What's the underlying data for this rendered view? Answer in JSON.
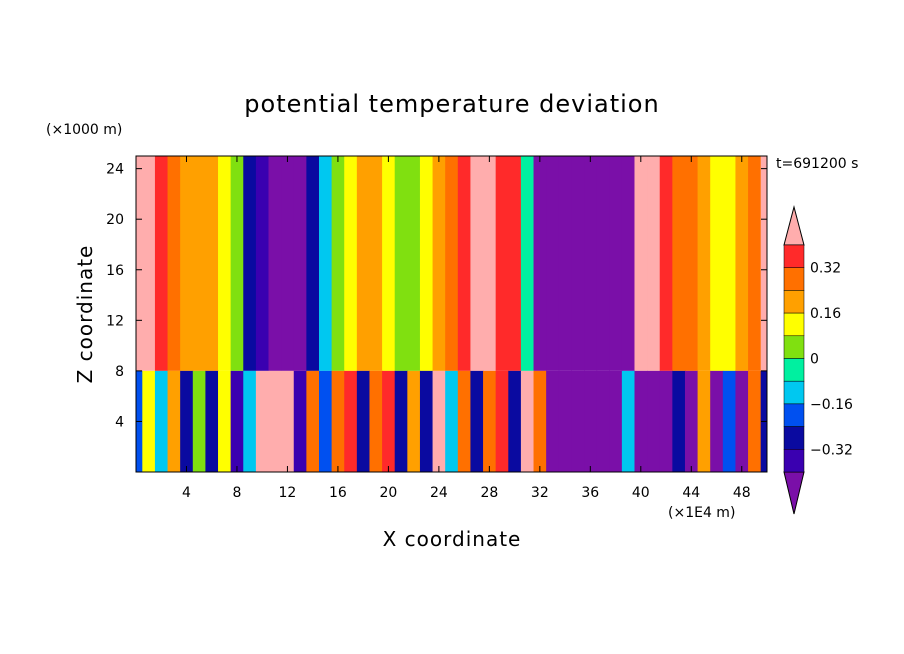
{
  "chart_data": {
    "type": "heatmap",
    "title": "potential temperature deviation",
    "xlabel": "X coordinate",
    "ylabel": "Z coordinate",
    "x_unit": "(×1E4 m)",
    "y_unit": "(×1000 m)",
    "time_label": "t=691200 s",
    "xlim": [
      0,
      50
    ],
    "ylim": [
      0,
      25
    ],
    "x_ticks": [
      4,
      8,
      12,
      16,
      20,
      24,
      28,
      32,
      36,
      40,
      44,
      48
    ],
    "y_ticks": [
      4,
      8,
      12,
      16,
      20,
      24
    ],
    "colorbar": {
      "levels": [
        -0.4,
        -0.32,
        -0.24,
        -0.16,
        -0.08,
        0,
        0.08,
        0.16,
        0.24,
        0.32,
        0.4
      ],
      "tick_labels": [
        "0.32",
        "0.16",
        "0",
        "−0.16",
        "−0.32"
      ],
      "tick_values": [
        0.32,
        0.16,
        0,
        -0.16,
        -0.32
      ],
      "colors": [
        "#7a0fa8",
        "#3a00b0",
        "#0a0aa0",
        "#0050f0",
        "#00c8f0",
        "#00f0a0",
        "#80e010",
        "#ffff00",
        "#ffa000",
        "#ff7000",
        "#ff2a2a",
        "#ffadad"
      ],
      "extend": "both"
    },
    "upper_layer_profile": {
      "z_range": [
        8,
        25
      ],
      "x": [
        0,
        1,
        2,
        3,
        4,
        5,
        6,
        7,
        8,
        9,
        10,
        11,
        12,
        13,
        14,
        15,
        16,
        17,
        18,
        19,
        20,
        21,
        22,
        23,
        24,
        25,
        26,
        27,
        28,
        29,
        30,
        31,
        32,
        33,
        34,
        35,
        36,
        37,
        38,
        39,
        40,
        41,
        42,
        43,
        44,
        45,
        46,
        47,
        48,
        49,
        50
      ],
      "values": [
        0.45,
        0.42,
        0.36,
        0.3,
        0.22,
        0.22,
        0.18,
        0.12,
        0.02,
        -0.3,
        -0.4,
        -0.42,
        -0.42,
        -0.42,
        -0.25,
        -0.1,
        0.02,
        0.12,
        0.18,
        0.16,
        0.1,
        0.06,
        0.04,
        0.1,
        0.2,
        0.28,
        0.34,
        0.4,
        0.42,
        0.36,
        0.32,
        -0.05,
        -0.42,
        -0.42,
        -0.42,
        -0.42,
        -0.42,
        -0.42,
        -0.42,
        -0.42,
        0.45,
        0.42,
        0.36,
        0.3,
        0.24,
        0.18,
        0.12,
        0.1,
        0.16,
        0.26,
        0.4
      ]
    },
    "lower_layer_profile": {
      "z_range": [
        0,
        8
      ],
      "x": [
        0,
        1,
        2,
        3,
        4,
        5,
        6,
        7,
        8,
        9,
        10,
        11,
        12,
        13,
        14,
        15,
        16,
        17,
        18,
        19,
        20,
        21,
        22,
        23,
        24,
        25,
        26,
        27,
        28,
        29,
        30,
        31,
        32,
        33,
        34,
        35,
        36,
        37,
        38,
        39,
        40,
        41,
        42,
        43,
        44,
        45,
        46,
        47,
        48,
        49,
        50
      ],
      "values": [
        -0.2,
        0.1,
        -0.1,
        0.2,
        -0.25,
        0.05,
        -0.3,
        0.1,
        -0.35,
        -0.1,
        0.4,
        0.42,
        0.4,
        -0.35,
        0.3,
        -0.2,
        0.25,
        0.35,
        -0.3,
        0.3,
        0.38,
        -0.25,
        0.2,
        -0.3,
        0.4,
        -0.1,
        0.3,
        -0.3,
        0.25,
        0.35,
        -0.25,
        0.4,
        0.3,
        -0.42,
        -0.42,
        -0.42,
        -0.42,
        -0.42,
        -0.42,
        -0.1,
        -0.42,
        -0.42,
        -0.42,
        -0.3,
        -0.42,
        0.2,
        -0.42,
        -0.2,
        -0.42,
        0.3,
        -0.3
      ]
    }
  }
}
